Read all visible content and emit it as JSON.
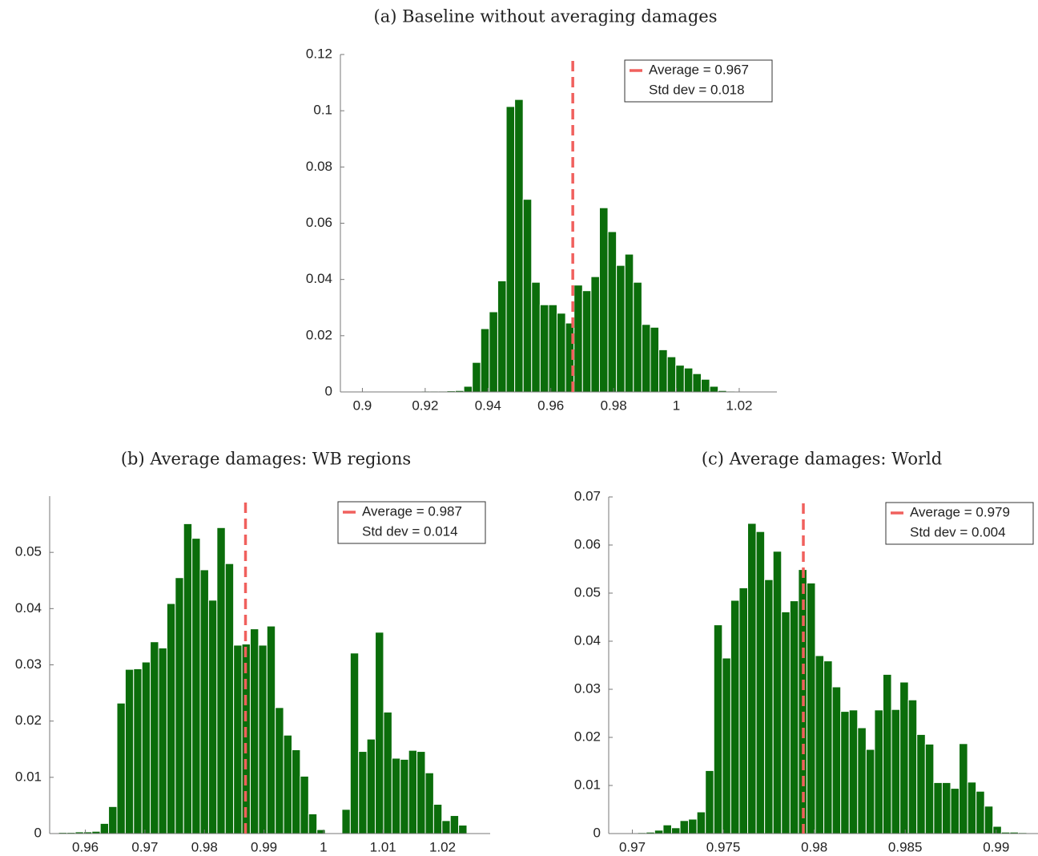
{
  "chart_data": [
    {
      "type": "histogram",
      "title": "(a) Baseline without averaging damages",
      "color": "#0b6d0b",
      "bins": [
        0.8945,
        0.8972,
        0.8999,
        0.9026,
        0.9053,
        0.908,
        0.9107,
        0.9134,
        0.9161,
        0.9188,
        0.9215,
        0.9242,
        0.9269,
        0.9296,
        0.9323,
        0.935,
        0.9377,
        0.9404,
        0.9431,
        0.9458,
        0.9485,
        0.9512,
        0.9539,
        0.9566,
        0.9593,
        0.962,
        0.9647,
        0.9674,
        0.9701,
        0.9728,
        0.9755,
        0.9782,
        0.9809,
        0.9836,
        0.9863,
        0.989,
        0.9917,
        0.9944,
        0.9971,
        0.9998,
        1.0025,
        1.0052,
        1.0079,
        1.0106,
        1.0133,
        1.016,
        1.0187,
        1.0214,
        1.0241,
        1.0268,
        1.0295
      ],
      "values": [
        0,
        0,
        0.0002,
        0.0002,
        0.0002,
        0.0002,
        0.0002,
        0.0002,
        0.0002,
        0.0003,
        0.0003,
        0.0003,
        0.0004,
        0.0005,
        0.002,
        0.0105,
        0.0225,
        0.0285,
        0.0395,
        0.1015,
        0.104,
        0.0685,
        0.039,
        0.031,
        0.031,
        0.028,
        0.0245,
        0.038,
        0.036,
        0.041,
        0.0655,
        0.057,
        0.045,
        0.049,
        0.039,
        0.024,
        0.023,
        0.015,
        0.0125,
        0.0095,
        0.0085,
        0.0065,
        0.0045,
        0.002,
        0.0005,
        0.0003,
        0.0002,
        0.0002,
        0.0001,
        0.0001
      ],
      "xlim": [
        0.893,
        1.032
      ],
      "xticks": [
        0.9,
        0.92,
        0.94,
        0.96,
        0.98,
        1,
        1.02
      ],
      "ylim": [
        0,
        0.12
      ],
      "yticks": [
        0,
        0.02,
        0.04,
        0.06,
        0.08,
        0.1,
        0.12
      ],
      "mean_line": {
        "value": 0.967,
        "color": "#f0605d"
      },
      "legend": [
        "Average = 0.967",
        "Std dev = 0.018"
      ],
      "legend_position": "upper right"
    },
    {
      "type": "histogram",
      "title": "(b) Average damages: WB regions",
      "color": "#0b6d0b",
      "bins": [
        0.9555,
        0.9569,
        0.9583,
        0.9597,
        0.9611,
        0.9625,
        0.9639,
        0.9653,
        0.9667,
        0.9681,
        0.9695,
        0.9709,
        0.9723,
        0.9737,
        0.9751,
        0.9765,
        0.9779,
        0.9793,
        0.9807,
        0.9821,
        0.9835,
        0.9849,
        0.9863,
        0.9877,
        0.9891,
        0.9905,
        0.9919,
        0.9933,
        0.9947,
        0.9961,
        0.9975,
        0.9989,
        1.0003,
        1.0017,
        1.0031,
        1.0045,
        1.0059,
        1.0073,
        1.0087,
        1.0101,
        1.0115,
        1.0129,
        1.0143,
        1.0157,
        1.0171,
        1.0185,
        1.0199,
        1.0213,
        1.0227,
        1.0241,
        1.0255
      ],
      "values": [
        0.0002,
        0.0002,
        0.0003,
        0.0003,
        0.0004,
        0.0018,
        0.0048,
        0.0232,
        0.0292,
        0.0293,
        0.0305,
        0.0341,
        0.033,
        0.0409,
        0.0455,
        0.0551,
        0.0525,
        0.0469,
        0.0415,
        0.0544,
        0.048,
        0.0335,
        0.0337,
        0.0364,
        0.0335,
        0.0369,
        0.0224,
        0.0175,
        0.0149,
        0.0102,
        0.0035,
        0.0007,
        0,
        0,
        0.0043,
        0.0321,
        0.0146,
        0.0168,
        0.0358,
        0.0216,
        0.0134,
        0.0132,
        0.0148,
        0.0146,
        0.0108,
        0.0052,
        0.0023,
        0.0032,
        0.0015,
        0
      ],
      "xlim": [
        0.954,
        1.028
      ],
      "xticks": [
        0.96,
        0.97,
        0.98,
        0.99,
        1,
        1.01,
        1.02
      ],
      "ylim": [
        0,
        0.06
      ],
      "yticks": [
        0,
        0.01,
        0.02,
        0.03,
        0.04,
        0.05
      ],
      "mean_line": {
        "value": 0.9869,
        "color": "#f0605d"
      },
      "legend": [
        "Average = 0.987",
        "Std dev = 0.014"
      ],
      "legend_position": "upper right"
    },
    {
      "type": "histogram",
      "title": "(c) Average damages: World",
      "color": "#0b6d0b",
      "bins": [
        0.9689,
        0.969365,
        0.96983,
        0.970295,
        0.97076,
        0.971225,
        0.97169,
        0.972155,
        0.97262,
        0.973085,
        0.97355,
        0.974015,
        0.97448,
        0.974945,
        0.97541,
        0.975875,
        0.97634,
        0.976805,
        0.97727,
        0.977735,
        0.9782,
        0.978665,
        0.97913,
        0.979595,
        0.98006,
        0.980525,
        0.98099,
        0.981455,
        0.98192,
        0.982385,
        0.98285,
        0.983315,
        0.98378,
        0.984245,
        0.98471,
        0.985175,
        0.98564,
        0.986105,
        0.98657,
        0.987035,
        0.9875,
        0.987965,
        0.98843,
        0.988895,
        0.98936,
        0.989825,
        0.99029,
        0.990755,
        0.99122,
        0.991685,
        0.99215
      ],
      "values": [
        0,
        0.0001,
        0.0001,
        0.0002,
        0.0003,
        0.0007,
        0.0018,
        0.0012,
        0.0027,
        0.003,
        0.0045,
        0.0131,
        0.0434,
        0.0365,
        0.0485,
        0.0511,
        0.0645,
        0.0628,
        0.0528,
        0.0587,
        0.0461,
        0.0484,
        0.0549,
        0.0521,
        0.037,
        0.0359,
        0.0305,
        0.0254,
        0.0257,
        0.022,
        0.0175,
        0.0257,
        0.0331,
        0.0258,
        0.0315,
        0.0278,
        0.0206,
        0.0186,
        0.0106,
        0.0106,
        0.0094,
        0.0187,
        0.0107,
        0.0088,
        0.0057,
        0.0015,
        0.0003,
        0.0003,
        0.0002,
        0.0001
      ],
      "xlim": [
        0.9687,
        0.9923
      ],
      "xticks": [
        0.97,
        0.975,
        0.98,
        0.985,
        0.99
      ],
      "ylim": [
        0,
        0.07
      ],
      "yticks": [
        0,
        0.01,
        0.02,
        0.03,
        0.04,
        0.05,
        0.06,
        0.07
      ],
      "mean_line": {
        "value": 0.9794,
        "color": "#f0605d"
      },
      "legend": [
        "Average = 0.979",
        "Std dev = 0.004"
      ],
      "legend_position": "upper right"
    }
  ]
}
